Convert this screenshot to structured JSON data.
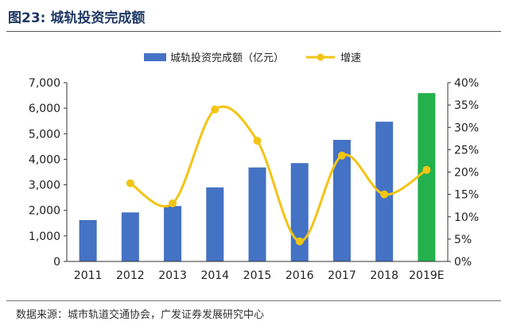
{
  "figure": {
    "title": "图23:  城轨投资完成额",
    "source": "数据来源：城市轨道交通协会，广发证券发展研究中心"
  },
  "colors": {
    "bar": "#4472c4",
    "bar_highlight": "#22b14c",
    "line": "#f2c415",
    "axis": "#333333",
    "title": "#1f3864"
  },
  "chart_data": {
    "type": "bar",
    "categories": [
      "2011",
      "2012",
      "2013",
      "2014",
      "2015",
      "2016",
      "2017",
      "2018",
      "2019E"
    ],
    "series": [
      {
        "name": "城轨投资完成额（亿元）",
        "type": "bar",
        "axis": "left",
        "values": [
          1620,
          1920,
          2170,
          2900,
          3680,
          3850,
          4760,
          5470,
          6590
        ],
        "highlight_index": 8
      },
      {
        "name": "增速",
        "type": "line",
        "axis": "right",
        "values": [
          null,
          0.175,
          0.13,
          0.34,
          0.27,
          0.045,
          0.237,
          0.15,
          0.205
        ]
      }
    ],
    "ylim_left": [
      0,
      7000
    ],
    "yticks_left": [
      "0",
      "1,000",
      "2,000",
      "3,000",
      "4,000",
      "5,000",
      "6,000",
      "7,000"
    ],
    "ylim_right": [
      0,
      0.4
    ],
    "yticks_right": [
      "0%",
      "5%",
      "10%",
      "15%",
      "20%",
      "25%",
      "30%",
      "35%",
      "40%"
    ],
    "legend_position": "top",
    "grid": false
  }
}
